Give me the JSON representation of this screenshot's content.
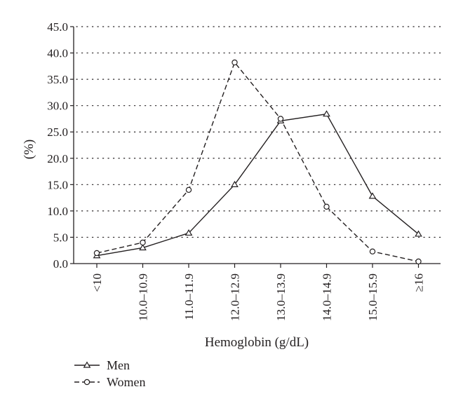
{
  "chart_data": {
    "type": "line",
    "xlabel": "Hemoglobin (g/dL)",
    "ylabel": "(%)",
    "ylim": [
      0,
      45
    ],
    "yticks": [
      "0.0",
      "5.0",
      "10.0",
      "15.0",
      "20.0",
      "25.0",
      "30.0",
      "35.0",
      "40.0",
      "45.0"
    ],
    "grid": "horizontal dotted",
    "legend_position": "bottom-left",
    "categories": [
      "<10",
      "10.0–10.9",
      "11.0–11.9",
      "12.0–12.9",
      "13.0–13.9",
      "14.0–14.9",
      "15.0–15.9",
      "≥16"
    ],
    "series": [
      {
        "name": "Men",
        "marker": "triangle",
        "line": "solid",
        "color": "#231f20",
        "values": [
          1.5,
          3.0,
          5.8,
          15.0,
          27.1,
          28.4,
          12.8,
          5.6
        ]
      },
      {
        "name": "Women",
        "marker": "circle",
        "line": "dashed",
        "color": "#231f20",
        "values": [
          2.0,
          4.0,
          14.0,
          38.2,
          27.5,
          10.8,
          2.3,
          0.4
        ]
      }
    ]
  }
}
